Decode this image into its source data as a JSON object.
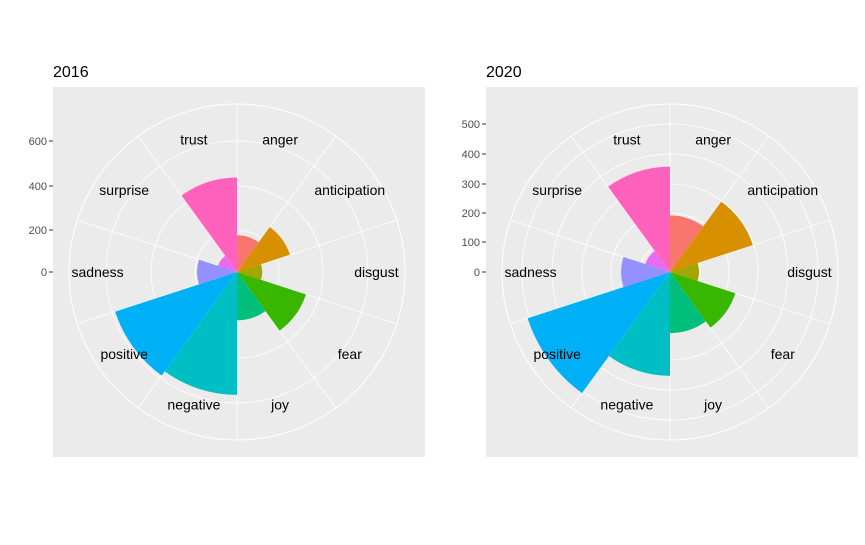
{
  "chart_data": [
    {
      "type": "polar-bar",
      "title": "2016",
      "categories": [
        "anger",
        "anticipation",
        "disgust",
        "fear",
        "joy",
        "negative",
        "positive",
        "sadness",
        "surprise",
        "trust"
      ],
      "values": [
        175,
        265,
        120,
        345,
        230,
        585,
        610,
        190,
        95,
        450
      ],
      "yticks": [
        "0",
        "200",
        "400",
        "600"
      ],
      "ylim": [
        0,
        800
      ],
      "grid": true,
      "legend": "none"
    },
    {
      "type": "polar-bar",
      "title": "2020",
      "categories": [
        "anger",
        "anticipation",
        "disgust",
        "fear",
        "joy",
        "negative",
        "positive",
        "sadness",
        "surprise",
        "trust"
      ],
      "values": [
        185,
        285,
        95,
        225,
        200,
        340,
        490,
        160,
        85,
        345
      ],
      "yticks": [
        "0",
        "100",
        "200",
        "300",
        "400",
        "500"
      ],
      "ylim": [
        0,
        550
      ],
      "grid": true,
      "legend": "none"
    }
  ],
  "colors": {
    "anger": "#F8766D",
    "anticipation": "#D89000",
    "disgust": "#A3A500",
    "fear": "#39B600",
    "joy": "#00BF7D",
    "negative": "#00BFC4",
    "positive": "#00B0F6",
    "sadness": "#9590FF",
    "surprise": "#E76BF3",
    "trust": "#FF62BC",
    "panel": "#EBEBEB",
    "grid": "#FFFFFF",
    "axis_text": "#4D4D4D"
  }
}
